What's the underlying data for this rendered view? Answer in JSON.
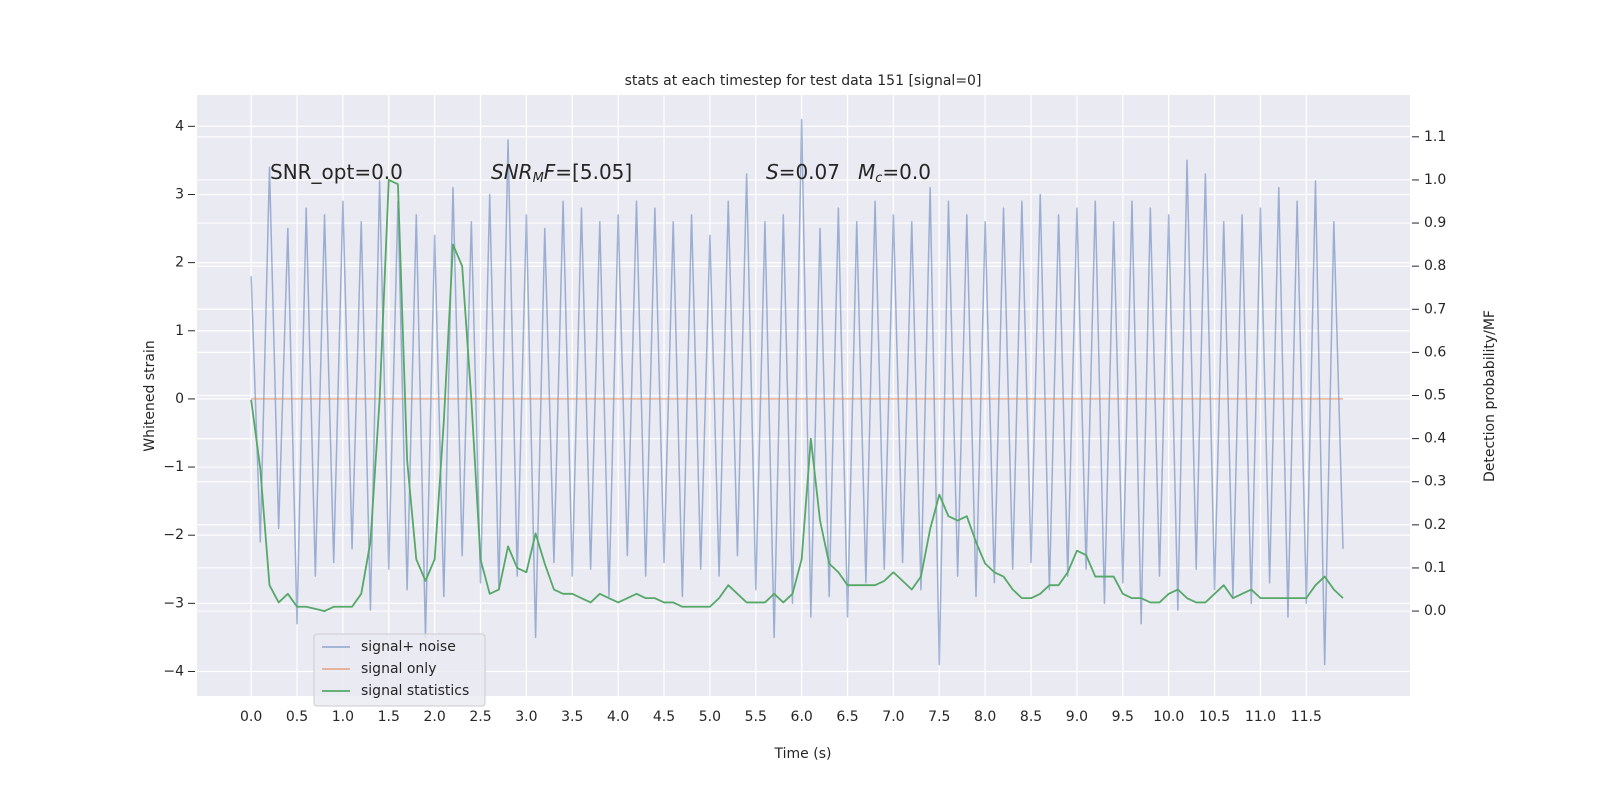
{
  "chart_data": {
    "type": "line",
    "title": "stats at each timestep for test data 151 [signal=0]",
    "x_label": "Time (s)",
    "y_label": "Whitened strain",
    "y2_label": "Detection probability/MF",
    "annotations": [
      [
        {
          "text": "SNR_opt=0.0"
        }
      ],
      [
        {
          "text": "SNR",
          "style": "italic"
        },
        {
          "text": "M",
          "style": "sub"
        },
        {
          "text": "F",
          "style": "italic"
        },
        {
          "text": "=[5.05]"
        }
      ],
      [
        {
          "text": "S",
          "style": "italic"
        },
        {
          "text": "=0.07"
        }
      ],
      [
        {
          "text": "M",
          "style": "italic"
        },
        {
          "text": "c",
          "style": "sub"
        },
        {
          "text": "=0.0"
        }
      ]
    ],
    "x": [
      0,
      0.1,
      0.2,
      0.3,
      0.4,
      0.5,
      0.6,
      0.7,
      0.8,
      0.9,
      1,
      1.1,
      1.2,
      1.3,
      1.4,
      1.5,
      1.6,
      1.7,
      1.8,
      1.9,
      2,
      2.1,
      2.2,
      2.3,
      2.4,
      2.5,
      2.6,
      2.7,
      2.8,
      2.9,
      3,
      3.1,
      3.2,
      3.3,
      3.4,
      3.5,
      3.6,
      3.7,
      3.8,
      3.9,
      4,
      4.1,
      4.2,
      4.3,
      4.4,
      4.5,
      4.6,
      4.7,
      4.8,
      4.9,
      5,
      5.1,
      5.2,
      5.3,
      5.4,
      5.5,
      5.6,
      5.7,
      5.8,
      5.9,
      6,
      6.1,
      6.2,
      6.3,
      6.4,
      6.5,
      6.6,
      6.7,
      6.8,
      6.9,
      7,
      7.1,
      7.2,
      7.3,
      7.4,
      7.5,
      7.6,
      7.7,
      7.8,
      7.9,
      8,
      8.1,
      8.2,
      8.3,
      8.4,
      8.5,
      8.6,
      8.7,
      8.8,
      8.9,
      9,
      9.1,
      9.2,
      9.3,
      9.4,
      9.5,
      9.6,
      9.7,
      9.8,
      9.9,
      10,
      10.1,
      10.2,
      10.3,
      10.4,
      10.5,
      10.6,
      10.7,
      10.8,
      10.9,
      11,
      11.1,
      11.2,
      11.3,
      11.4,
      11.5,
      11.6,
      11.7,
      11.8,
      11.9
    ],
    "series": [
      {
        "name": "signal+ noise",
        "color": "#4c72b0",
        "values": [
          1.8,
          -2.1,
          3.4,
          -1.9,
          2.5,
          -3.3,
          2.8,
          -2.6,
          2.7,
          -2.4,
          2.9,
          -2.2,
          2.6,
          -3.1,
          3.2,
          -2.5,
          2.9,
          -2.8,
          2.7,
          -3.5,
          2.4,
          -2.9,
          3.1,
          -2.3,
          2.6,
          -2.7,
          3.0,
          -2.8,
          3.8,
          -2.6,
          2.7,
          -3.5,
          2.5,
          -2.4,
          2.9,
          -2.6,
          2.8,
          -2.5,
          2.6,
          -2.9,
          2.7,
          -2.3,
          2.9,
          -2.6,
          2.8,
          -2.4,
          2.6,
          -2.9,
          2.7,
          -2.5,
          2.4,
          -2.6,
          2.9,
          -2.3,
          3.3,
          -2.8,
          2.6,
          -3.5,
          2.7,
          -3.0,
          4.1,
          -3.2,
          2.5,
          -2.9,
          2.8,
          -3.2,
          2.6,
          -2.7,
          2.9,
          -2.5,
          2.7,
          -2.4,
          2.6,
          -2.8,
          3.1,
          -3.9,
          2.9,
          -2.6,
          2.7,
          -2.9,
          2.6,
          -2.7,
          2.8,
          -2.5,
          2.9,
          -2.4,
          3.0,
          -2.8,
          2.7,
          -2.6,
          2.8,
          -2.5,
          2.9,
          -3.0,
          2.6,
          -2.7,
          2.9,
          -3.3,
          2.8,
          -2.6,
          2.7,
          -3.1,
          3.5,
          -2.5,
          3.3,
          -2.8,
          2.6,
          -2.9,
          2.7,
          -3.0,
          2.8,
          -2.7,
          3.1,
          -3.2,
          2.9,
          -3.0,
          3.2,
          -3.9,
          2.6,
          -2.2
        ]
      },
      {
        "name": "signal only",
        "color": "#dd8452",
        "values": [
          0,
          0,
          0,
          0,
          0,
          0,
          0,
          0,
          0,
          0,
          0,
          0,
          0,
          0,
          0,
          0,
          0,
          0,
          0,
          0,
          0,
          0,
          0,
          0,
          0,
          0,
          0,
          0,
          0,
          0,
          0,
          0,
          0,
          0,
          0,
          0,
          0,
          0,
          0,
          0,
          0,
          0,
          0,
          0,
          0,
          0,
          0,
          0,
          0,
          0,
          0,
          0,
          0,
          0,
          0,
          0,
          0,
          0,
          0,
          0,
          0,
          0,
          0,
          0,
          0,
          0,
          0,
          0,
          0,
          0,
          0,
          0,
          0,
          0,
          0,
          0,
          0,
          0,
          0,
          0,
          0,
          0,
          0,
          0,
          0,
          0,
          0,
          0,
          0,
          0,
          0,
          0,
          0,
          0,
          0,
          0,
          0,
          0,
          0,
          0,
          0,
          0,
          0,
          0,
          0,
          0,
          0,
          0,
          0,
          0,
          0,
          0,
          0,
          0,
          0,
          0,
          0,
          0,
          0,
          0
        ]
      },
      {
        "name": "signal statistics",
        "color": "#55a868",
        "axis": "y2",
        "values": [
          0.49,
          0.33,
          0.06,
          0.02,
          0.04,
          0.01,
          0.01,
          0.005,
          0.0,
          0.01,
          0.01,
          0.01,
          0.04,
          0.16,
          0.49,
          1.0,
          0.99,
          0.35,
          0.12,
          0.07,
          0.12,
          0.44,
          0.85,
          0.8,
          0.49,
          0.12,
          0.04,
          0.05,
          0.15,
          0.1,
          0.09,
          0.18,
          0.11,
          0.05,
          0.04,
          0.04,
          0.03,
          0.02,
          0.04,
          0.03,
          0.02,
          0.03,
          0.04,
          0.03,
          0.03,
          0.02,
          0.02,
          0.01,
          0.01,
          0.01,
          0.01,
          0.03,
          0.06,
          0.04,
          0.02,
          0.02,
          0.02,
          0.04,
          0.02,
          0.04,
          0.12,
          0.4,
          0.21,
          0.11,
          0.09,
          0.06,
          0.06,
          0.06,
          0.06,
          0.07,
          0.09,
          0.07,
          0.05,
          0.08,
          0.19,
          0.27,
          0.22,
          0.21,
          0.22,
          0.16,
          0.11,
          0.09,
          0.08,
          0.05,
          0.03,
          0.03,
          0.04,
          0.06,
          0.06,
          0.09,
          0.14,
          0.13,
          0.08,
          0.08,
          0.08,
          0.04,
          0.03,
          0.03,
          0.02,
          0.02,
          0.04,
          0.05,
          0.03,
          0.02,
          0.02,
          0.04,
          0.06,
          0.03,
          0.04,
          0.05,
          0.03,
          0.03,
          0.03,
          0.03,
          0.03,
          0.03,
          0.06,
          0.08,
          0.05,
          0.03
        ]
      }
    ],
    "xlim": [
      -0.59,
      12.63
    ],
    "xticks": [
      {
        "value": 0,
        "label": "0.0"
      },
      0.5,
      {
        "value": 1,
        "label": "1.0"
      },
      1.5,
      {
        "value": 2,
        "label": "2.0"
      },
      2.5,
      {
        "value": 3,
        "label": "3.0"
      },
      3.5,
      {
        "value": 4,
        "label": "4.0"
      },
      4.5,
      {
        "value": 5,
        "label": "5.0"
      },
      5.5,
      {
        "value": 6,
        "label": "6.0"
      },
      6.5,
      {
        "value": 7,
        "label": "7.0"
      },
      7.5,
      {
        "value": 8,
        "label": "8.0"
      },
      8.5,
      {
        "value": 9,
        "label": "9.0"
      },
      9.5,
      {
        "value": 10,
        "label": "10.0"
      },
      10.5,
      {
        "value": 11,
        "label": "11.0"
      },
      11.5
    ],
    "ylim": [
      -4.36,
      4.46
    ],
    "yticks": [
      {
        "value": -4,
        "label": "−4"
      },
      {
        "value": -3,
        "label": "−3"
      },
      {
        "value": -2,
        "label": "−2"
      },
      {
        "value": -1,
        "label": "−1"
      },
      0,
      1,
      2,
      3,
      4
    ],
    "y2lim": [
      -0.197,
      1.197
    ],
    "y2ticks": [
      {
        "value": 0,
        "label": "0.0"
      },
      0.1,
      0.2,
      0.3,
      0.4,
      0.5,
      0.6,
      0.7,
      0.8,
      0.9,
      {
        "value": 1,
        "label": "1.0"
      },
      1.1
    ],
    "grid": true,
    "legend": "lower left"
  }
}
